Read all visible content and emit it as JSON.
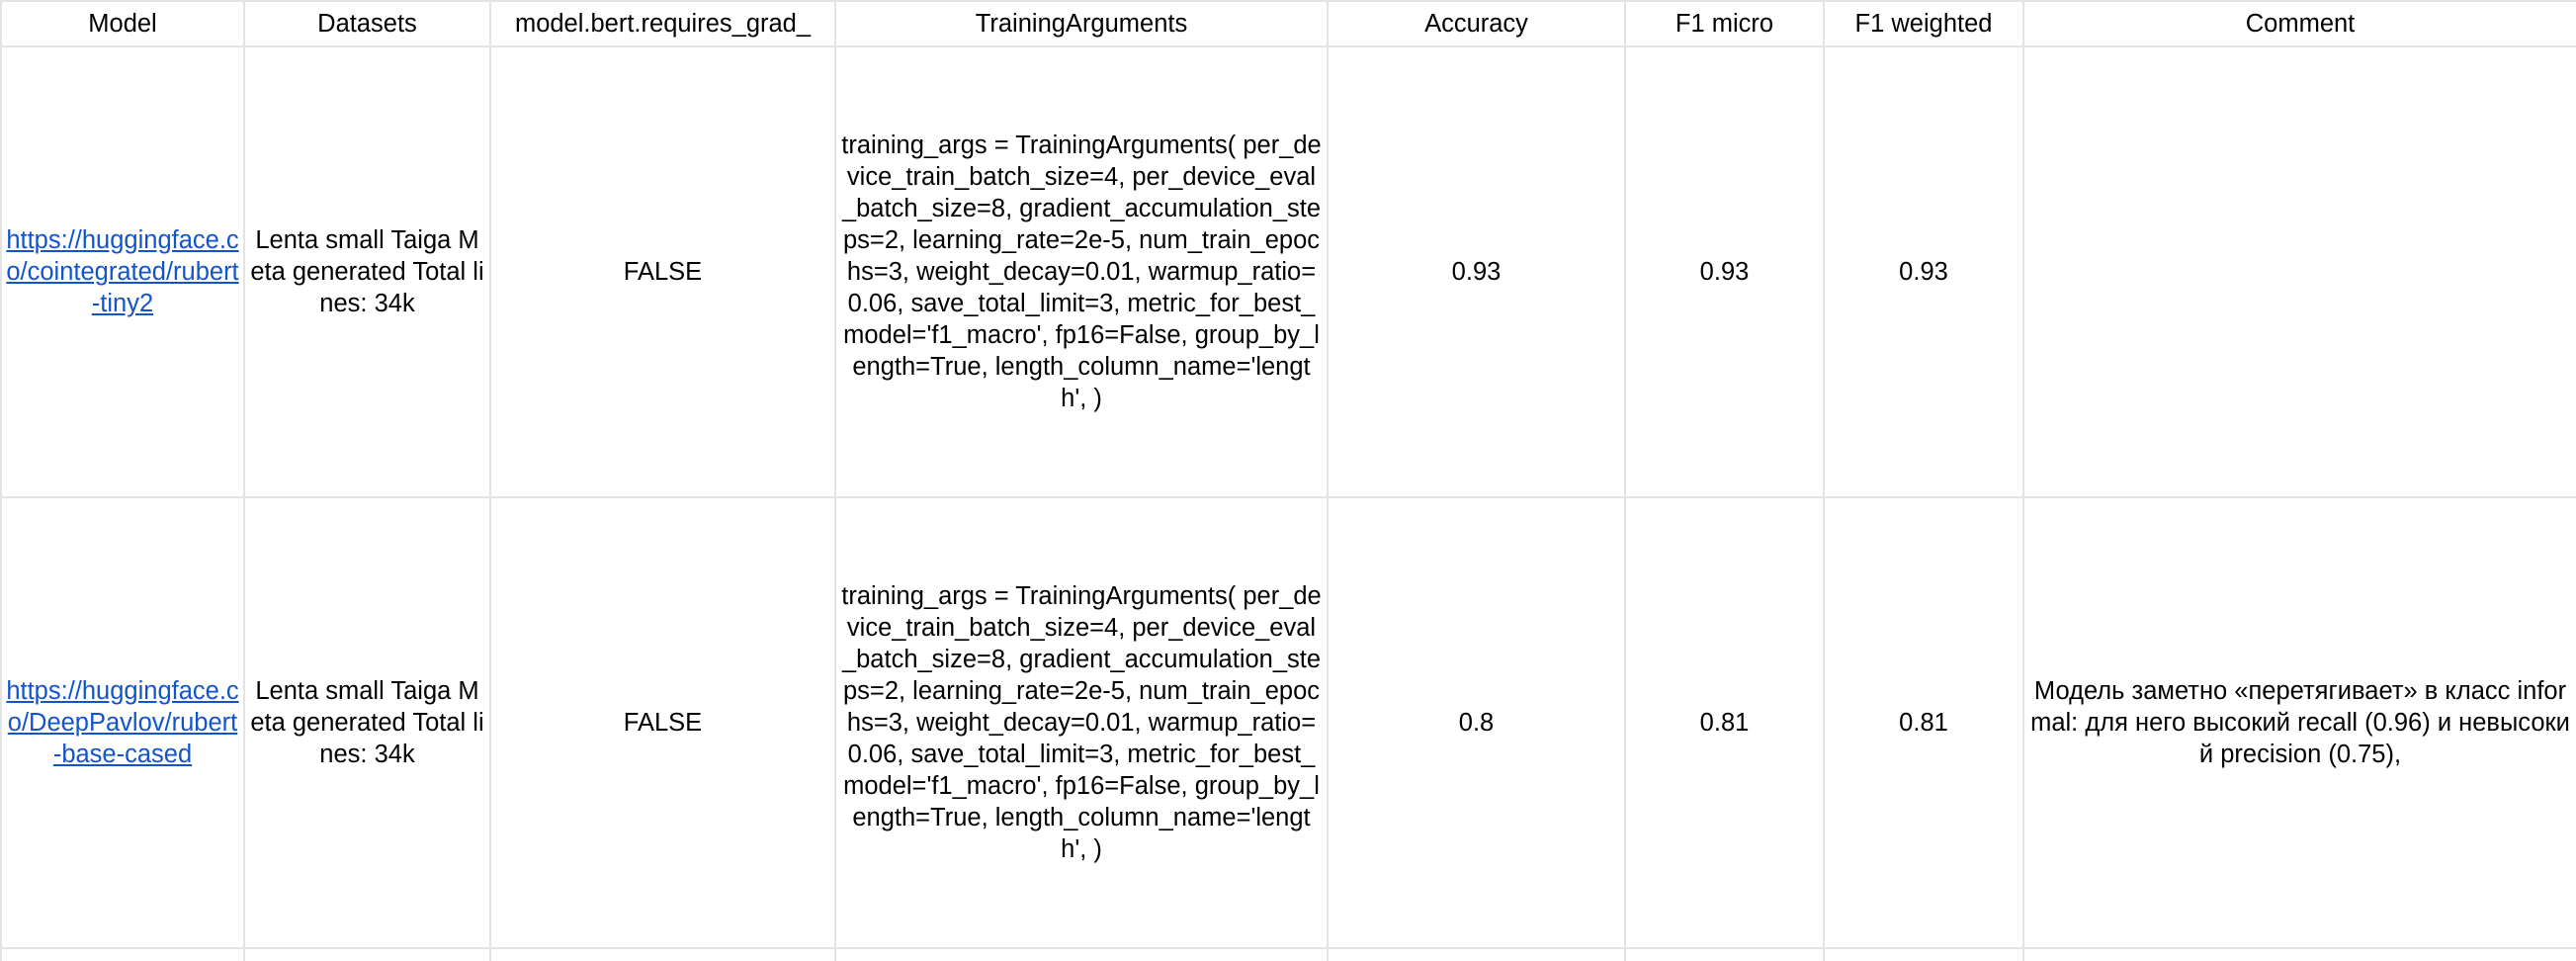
{
  "headers": {
    "model": "Model",
    "datasets": "Datasets",
    "requires_grad": "model.bert.requires_grad_",
    "training_arguments": "TrainingArguments",
    "accuracy": "Accuracy",
    "f1_micro": "F1 micro",
    "f1_weighted": "F1 weighted",
    "comment": "Comment"
  },
  "rows": [
    {
      "model_link": "https://huggingface.co/cointegrated/rubert-tiny2",
      "datasets": "Lenta small\nTaiga\nMeta generated\n\nTotal lines: 34k",
      "requires_grad": "FALSE",
      "training_args": "training_args = TrainingArguments(\n    per_device_train_batch_size=4,\n    per_device_eval_batch_size=8,\n    gradient_accumulation_steps=2,\n    learning_rate=2e-5,\n    num_train_epochs=3,\n    weight_decay=0.01,\n    warmup_ratio=0.06,\n    save_total_limit=3,\n    metric_for_best_model='f1_macro',\n    fp16=False,\n    group_by_length=True,\n    length_column_name='length',\n)",
      "accuracy": "0.93",
      "f1_micro": "0.93",
      "f1_weighted": "0.93",
      "comment": ""
    },
    {
      "model_link": "https://huggingface.co/DeepPavlov/rubert-base-cased",
      "datasets": "Lenta small\nTaiga\nMeta generated\n\nTotal lines: 34k",
      "requires_grad": "FALSE",
      "training_args": "training_args = TrainingArguments(\n    per_device_train_batch_size=4,\n    per_device_eval_batch_size=8,\n    gradient_accumulation_steps=2,\n    learning_rate=2e-5,\n    num_train_epochs=3,\n    weight_decay=0.01,\n    warmup_ratio=0.06,\n    save_total_limit=3,\n    metric_for_best_model='f1_macro',\n    fp16=False,\n    group_by_length=True,\n    length_column_name='length',\n)",
      "accuracy": "0.8",
      "f1_micro": "0.81",
      "f1_weighted": "0.81",
      "comment": "Модель заметно «перетягивает» в класс informal: для него высокий recall (0.96) и невысокий precision (0.75),"
    }
  ],
  "colors": {
    "grid_line": "#e2e3e3",
    "link": "#1155cc"
  }
}
